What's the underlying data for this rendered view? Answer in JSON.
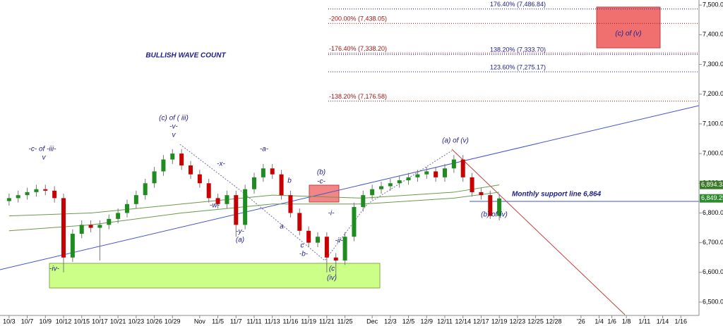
{
  "chart_data": {
    "type": "candlestick",
    "title": "BULLISH WAVE COUNT",
    "x": [
      1,
      2,
      3,
      4,
      5,
      6,
      7,
      8,
      9,
      10,
      11,
      12,
      13,
      14,
      15,
      16,
      17,
      18,
      19,
      20,
      21,
      22,
      23,
      24,
      25,
      26,
      27,
      28,
      29,
      30,
      31,
      32,
      33,
      34,
      35,
      36,
      37,
      38,
      39,
      40,
      41,
      42,
      43,
      44,
      45,
      46,
      47,
      48,
      49,
      50,
      51,
      52,
      53,
      54,
      55
    ],
    "open": [
      6840,
      6850,
      6860,
      6870,
      6880,
      6875,
      6850,
      6650,
      6730,
      6760,
      6750,
      6760,
      6780,
      6800,
      6830,
      6860,
      6900,
      6940,
      6980,
      7000,
      6960,
      6930,
      6900,
      6850,
      6830,
      6860,
      6760,
      6880,
      6920,
      6950,
      6930,
      6860,
      6800,
      6740,
      6700,
      6720,
      6650,
      6640,
      6720,
      6820,
      6860,
      6880,
      6890,
      6900,
      6910,
      6920,
      6930,
      6940,
      6920,
      6950,
      6980,
      6920,
      6870,
      6860,
      6790
    ],
    "high": [
      6865,
      6875,
      6885,
      6895,
      6895,
      6890,
      6865,
      6745,
      6775,
      6775,
      6775,
      6795,
      6815,
      6845,
      6875,
      6915,
      6955,
      6995,
      7015,
      7015,
      6975,
      6945,
      6915,
      6865,
      6875,
      6875,
      6895,
      6935,
      6965,
      6965,
      6945,
      6875,
      6815,
      6755,
      6735,
      6735,
      6665,
      6735,
      6835,
      6875,
      6895,
      6905,
      6915,
      6925,
      6935,
      6945,
      6955,
      6955,
      6965,
      6995,
      6995,
      6935,
      6885,
      6875,
      6864
    ],
    "low": [
      6825,
      6835,
      6845,
      6855,
      6860,
      6835,
      6600,
      6635,
      6715,
      6735,
      6640,
      6745,
      6765,
      6785,
      6815,
      6845,
      6885,
      6925,
      6965,
      6945,
      6915,
      6885,
      6835,
      6815,
      6815,
      6720,
      6745,
      6865,
      6905,
      6915,
      6845,
      6785,
      6725,
      6685,
      6685,
      6600,
      6590,
      6625,
      6705,
      6805,
      6845,
      6865,
      6875,
      6885,
      6895,
      6905,
      6915,
      6905,
      6905,
      6935,
      6905,
      6855,
      6845,
      6780,
      6775
    ],
    "close": [
      6850,
      6860,
      6870,
      6880,
      6875,
      6850,
      6650,
      6730,
      6760,
      6750,
      6760,
      6780,
      6800,
      6830,
      6860,
      6900,
      6940,
      6980,
      7000,
      6960,
      6930,
      6900,
      6850,
      6830,
      6860,
      6760,
      6880,
      6920,
      6950,
      6930,
      6860,
      6800,
      6740,
      6700,
      6720,
      6650,
      6640,
      6720,
      6820,
      6860,
      6880,
      6890,
      6900,
      6910,
      6920,
      6930,
      6940,
      6920,
      6950,
      6980,
      6920,
      6870,
      6860,
      6790,
      6849
    ],
    "up_color": "#1e8c1e",
    "down_color": "#c80000",
    "overlays": [
      {
        "color": "#6a9a4a",
        "x": [
          1,
          10,
          20,
          30,
          40,
          50,
          55
        ],
        "values": [
          6790,
          6800,
          6830,
          6860,
          6850,
          6870,
          6894.33
        ]
      },
      {
        "color": "#6a9a4a",
        "x": [
          1,
          10,
          20,
          30,
          40,
          50,
          55
        ],
        "values": [
          6740,
          6760,
          6800,
          6830,
          6830,
          6850,
          6870
        ]
      }
    ],
    "xlim": [
      0,
      77
    ],
    "ylim": [
      6455,
      7517
    ],
    "xticks": [
      {
        "value": 1,
        "label": "10/3"
      },
      {
        "value": 3,
        "label": "10/7"
      },
      {
        "value": 5,
        "label": "10/9"
      },
      {
        "value": 7,
        "label": "10/12"
      },
      {
        "value": 9,
        "label": "10/15"
      },
      {
        "value": 11,
        "label": "10/17"
      },
      {
        "value": 13,
        "label": "10/21"
      },
      {
        "value": 15,
        "label": "10/23"
      },
      {
        "value": 17,
        "label": "10/26"
      },
      {
        "value": 19,
        "label": "10/29"
      },
      {
        "value": 22,
        "label": "Nov"
      },
      {
        "value": 24,
        "label": "11/5"
      },
      {
        "value": 26,
        "label": "11/7"
      },
      {
        "value": 28,
        "label": "11/11"
      },
      {
        "value": 30,
        "label": "11/13"
      },
      {
        "value": 32,
        "label": "11/16"
      },
      {
        "value": 34,
        "label": "11/19"
      },
      {
        "value": 36,
        "label": "11/21"
      },
      {
        "value": 38,
        "label": "11/25"
      },
      {
        "value": 41,
        "label": "Dec"
      },
      {
        "value": 43,
        "label": "12/3"
      },
      {
        "value": 45,
        "label": "12/5"
      },
      {
        "value": 47,
        "label": "12/9"
      },
      {
        "value": 49,
        "label": "12/11"
      },
      {
        "value": 51,
        "label": "12/14"
      },
      {
        "value": 53,
        "label": "12/17"
      },
      {
        "value": 55,
        "label": "12/19"
      },
      {
        "value": 57,
        "label": "12/23"
      },
      {
        "value": 59,
        "label": "12/25"
      },
      {
        "value": 61,
        "label": "12/28"
      },
      {
        "value": 64,
        "label": "'26"
      },
      {
        "value": 66,
        "label": "1/4"
      },
      {
        "value": 67.4,
        "label": "1/6"
      },
      {
        "value": 69,
        "label": "1/8"
      },
      {
        "value": 71,
        "label": "1/11"
      },
      {
        "value": 73,
        "label": "1/14"
      },
      {
        "value": 75,
        "label": "1/16"
      }
    ],
    "yticks": [
      {
        "value": 6500,
        "label": "6,500.00"
      },
      {
        "value": 6600,
        "label": "6,600.00"
      },
      {
        "value": 6700,
        "label": "6,700.00"
      },
      {
        "value": 6800,
        "label": "6,800.00"
      },
      {
        "value": 6900,
        "label": "6,900.00"
      },
      {
        "value": 7000,
        "label": "7,000.00"
      },
      {
        "value": 7100,
        "label": "7,100.00"
      },
      {
        "value": 7200,
        "label": "7,200.00"
      },
      {
        "value": 7300,
        "label": "7,300.00"
      },
      {
        "value": 7400,
        "label": "7,400.00"
      },
      {
        "value": 7500,
        "label": "7,500.00"
      }
    ],
    "price_tags": [
      {
        "value": 6894.33,
        "label": "6,894.33"
      },
      {
        "value": 6849.25,
        "label": "6,849.25"
      }
    ],
    "fib_up": [
      {
        "value": 7486.84,
        "label": "176.40% (7,486.84)"
      },
      {
        "value": 7333.7,
        "label": "138.20% (7,333.70)"
      },
      {
        "value": 7275.17,
        "label": "123.60% (7,275.17)"
      }
    ],
    "fib_down": [
      {
        "value": 7438.05,
        "label": "-200.00% (7,438.05)"
      },
      {
        "value": 7338.2,
        "label": "-176.40% (7,338.20)"
      },
      {
        "value": 7176.58,
        "label": "-138.20% (7,176.58)"
      }
    ],
    "target_box_label": "(c) of (v)",
    "support_label": "Monthly support line 6,864",
    "wave_labels": [
      "-c- of -iii-",
      "v",
      "-iv-",
      "(c) of ( iii)",
      "-v-",
      "v",
      "-x-",
      "-w-",
      "-a-",
      "b",
      "-y-",
      "(a)",
      "a",
      "c",
      "-b-",
      "(b)",
      "-c-",
      "-i-",
      "-ii-",
      "(c",
      "(iv)",
      "(a) of (v)",
      "(b) of (v)"
    ]
  }
}
